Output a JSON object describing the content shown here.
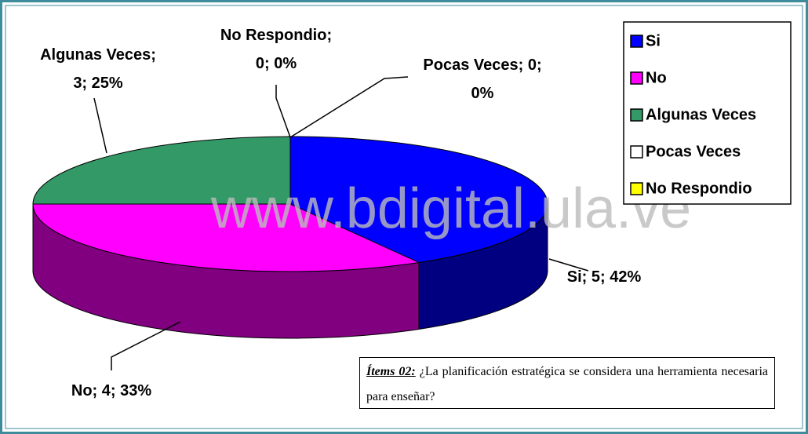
{
  "chart_data": {
    "type": "pie3d",
    "categories": [
      "Si",
      "No",
      "Algunas Veces",
      "Pocas Veces",
      "No Respondio"
    ],
    "values": [
      5,
      4,
      3,
      0,
      0
    ],
    "value_labels": [
      "Si; 5; 42%",
      "No; 4; 33%",
      "Algunas Veces;\n3; 25%",
      "Pocas Veces; 0;\n0%",
      "No Respondio;\n0; 0%"
    ],
    "colors": [
      "#0000ff",
      "#ff00ff",
      "#339966",
      "#ffffff",
      "#ffff00"
    ],
    "legend": "top-right",
    "watermark": "www.bdigital.ula.ve",
    "note": {
      "label": "Ítems 02:",
      "text": " ¿La planificación estratégica se considera una herramienta necesaria para enseñar?"
    }
  }
}
